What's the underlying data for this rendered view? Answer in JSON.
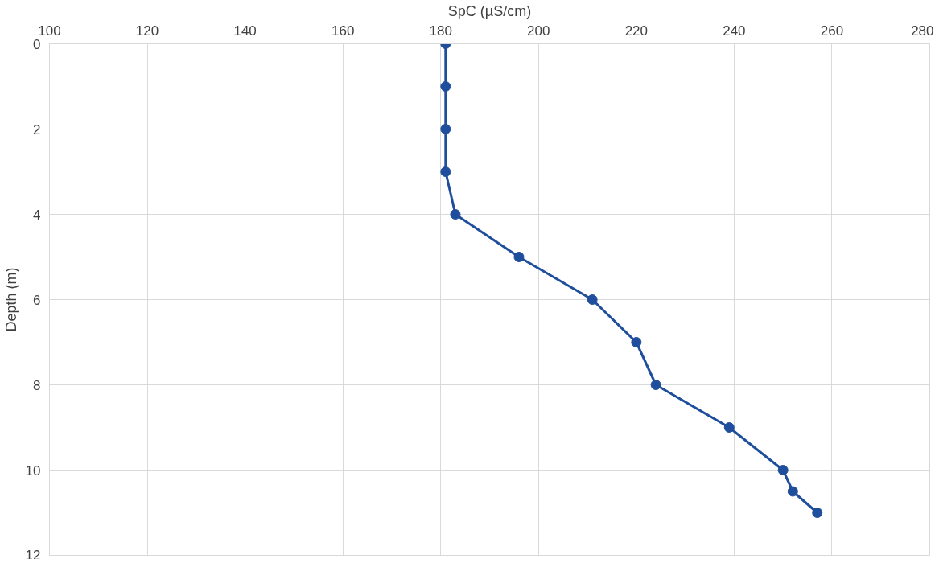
{
  "chart_data": {
    "type": "line",
    "xlabel": "SpC (µS/cm)",
    "ylabel": "Depth (m)",
    "series": [
      {
        "color": "#1f4e9c",
        "x": [
          181,
          181,
          181,
          181,
          183,
          196,
          211,
          220,
          224,
          239,
          250,
          252,
          257
        ],
        "values": [
          0,
          1,
          2,
          3,
          4,
          5,
          6,
          7,
          8,
          9,
          10,
          10.5,
          11
        ]
      }
    ],
    "xlim": [
      100,
      280
    ],
    "xticks": [
      100,
      120,
      140,
      160,
      180,
      200,
      220,
      240,
      260,
      280
    ],
    "ylim": [
      12,
      0
    ],
    "yticks": [
      0,
      2,
      4,
      6,
      8,
      10,
      12
    ],
    "grid": true,
    "marker": "circle",
    "line_style": "solid"
  }
}
